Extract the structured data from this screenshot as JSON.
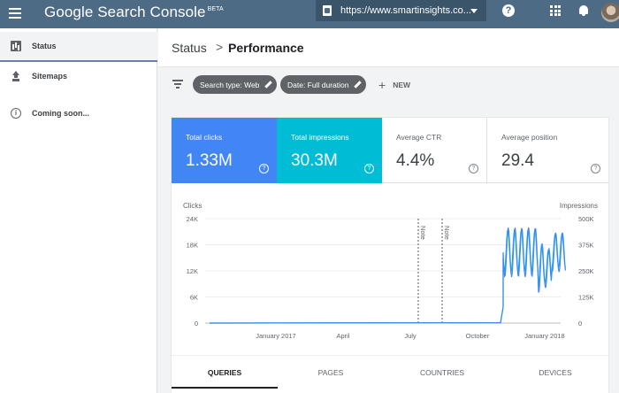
{
  "header": {
    "brand": "Google Search Console",
    "brand_badge": "BETA",
    "property_url": "https://www.smartinsights.co...",
    "icons": [
      "menu-icon",
      "property-icon",
      "help-icon",
      "apps-icon",
      "bell-icon",
      "avatar"
    ],
    "colors": {
      "bar": "#4d6b84",
      "property_select": "#3a5469"
    }
  },
  "sidebar": {
    "items": [
      {
        "label": "Status",
        "icon": "status-icon",
        "active": true
      },
      {
        "label": "Sitemaps",
        "icon": "upload-icon",
        "active": false
      },
      {
        "label": "Coming soon...",
        "icon": "info-icon",
        "active": false
      }
    ]
  },
  "breadcrumb": {
    "parent": "Status",
    "separator": ">",
    "current": "Performance"
  },
  "filters": {
    "chips": [
      {
        "label": "Search type: Web"
      },
      {
        "label": "Date: Full duration"
      }
    ],
    "new_label": "NEW"
  },
  "metrics": [
    {
      "label": "Total clicks",
      "value": "1.33M",
      "color": "#4285f4"
    },
    {
      "label": "Total impressions",
      "value": "30.3M",
      "color": "#00bcd4"
    },
    {
      "label": "Average CTR",
      "value": "4.4%"
    },
    {
      "label": "Average position",
      "value": "29.4"
    }
  ],
  "chart_data": {
    "type": "line",
    "left_axis_title": "Clicks",
    "right_axis_title": "Impressions",
    "left_ticks": [
      "24K",
      "18K",
      "12K",
      "6K",
      "0"
    ],
    "right_ticks": [
      "500K",
      "375K",
      "250K",
      "125K",
      "0"
    ],
    "left_ylim": [
      0,
      24000
    ],
    "right_ylim": [
      0,
      500000
    ],
    "x_ticks": [
      "January 2017",
      "April",
      "July",
      "October",
      "January 2018"
    ],
    "annotations": [
      {
        "label": "Note"
      },
      {
        "label": "Note"
      }
    ],
    "series": [
      {
        "name": "Clicks",
        "color": "#4285f4"
      },
      {
        "name": "Impressions",
        "color": "#00bcd4"
      }
    ]
  },
  "tabs": [
    {
      "label": "QUERIES",
      "active": true
    },
    {
      "label": "PAGES",
      "active": false
    },
    {
      "label": "COUNTRIES",
      "active": false
    },
    {
      "label": "DEVICES",
      "active": false
    }
  ]
}
